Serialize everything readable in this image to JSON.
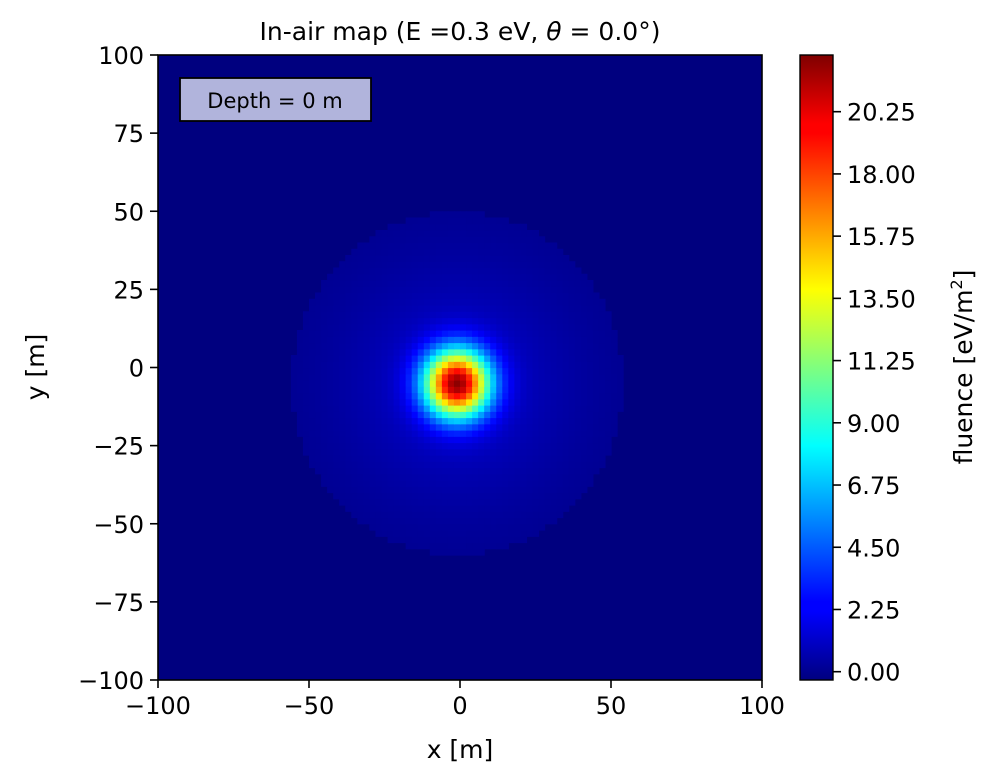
{
  "chart_data": {
    "type": "heatmap",
    "title": "In-air map (E =0.3 eV, θ = 0.0°)",
    "title_parts": {
      "prefix": "In-air map (E =0.3 eV, ",
      "theta": "θ",
      "suffix": " = 0.0°)"
    },
    "xlabel": "x [m]",
    "ylabel": "y [m]",
    "xlim": [
      -100,
      100
    ],
    "ylim": [
      -100,
      100
    ],
    "x_ticks": [
      -100,
      -50,
      0,
      50,
      100
    ],
    "x_tick_labels": [
      "−100",
      "−50",
      "0",
      "50",
      "100"
    ],
    "y_ticks": [
      -100,
      -75,
      -50,
      -25,
      0,
      25,
      50,
      75,
      100
    ],
    "y_tick_labels": [
      "−100",
      "−75",
      "−50",
      "−25",
      "0",
      "25",
      "50",
      "75",
      "100"
    ],
    "colorbar": {
      "label_prefix": "fluence [eV/m",
      "label_sup": "2",
      "label_suffix": "]",
      "range": [
        -0.3,
        22.3
      ],
      "ticks": [
        0.0,
        2.25,
        4.5,
        6.75,
        9.0,
        11.25,
        13.5,
        15.75,
        18.0,
        20.25
      ],
      "tick_labels": [
        "0.00",
        "2.25",
        "4.50",
        "6.75",
        "9.00",
        "11.25",
        "13.50",
        "15.75",
        "18.00",
        "20.25"
      ],
      "colormap": "jet"
    },
    "annotation": "Depth = 0 m",
    "peak": {
      "x": -1,
      "y": -5,
      "value": 22.0
    },
    "field": {
      "core_sigma": 7.5,
      "halo_amplitude": 1.4,
      "halo_sigma": 26,
      "footprint_radius": 68
    }
  }
}
